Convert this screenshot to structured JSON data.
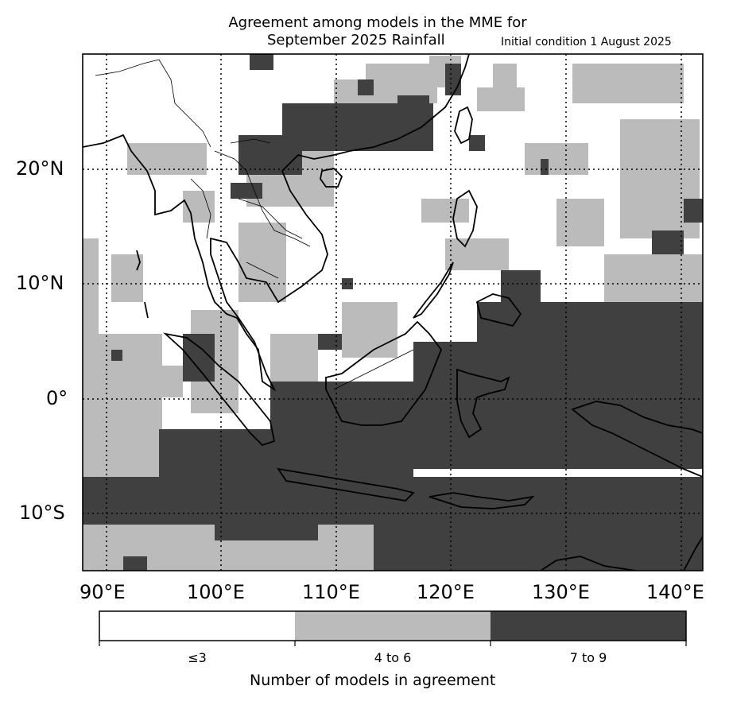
{
  "title_line1": "Agreement among models in the MME for",
  "title_line2": "September 2025  Rainfall",
  "initial_condition": "Initial condition 1 August 2025",
  "lat_labels": [
    "20°N",
    "10°N",
    "0°",
    "10°S"
  ],
  "lon_labels": [
    "90°E",
    "100°E",
    "110°E",
    "120°E",
    "130°E",
    "140°E"
  ],
  "colorbar": {
    "title": "Number of models in agreement",
    "categories": [
      {
        "label": "≤3",
        "color": "#ffffff"
      },
      {
        "label": "4 to 6",
        "color": "#bbbbbb"
      },
      {
        "label": "7 to 9",
        "color": "#404040"
      }
    ]
  },
  "colors": {
    "low": "#ffffff",
    "mid": "#bbbbbb",
    "high": "#404040",
    "coast": "#000000"
  }
}
